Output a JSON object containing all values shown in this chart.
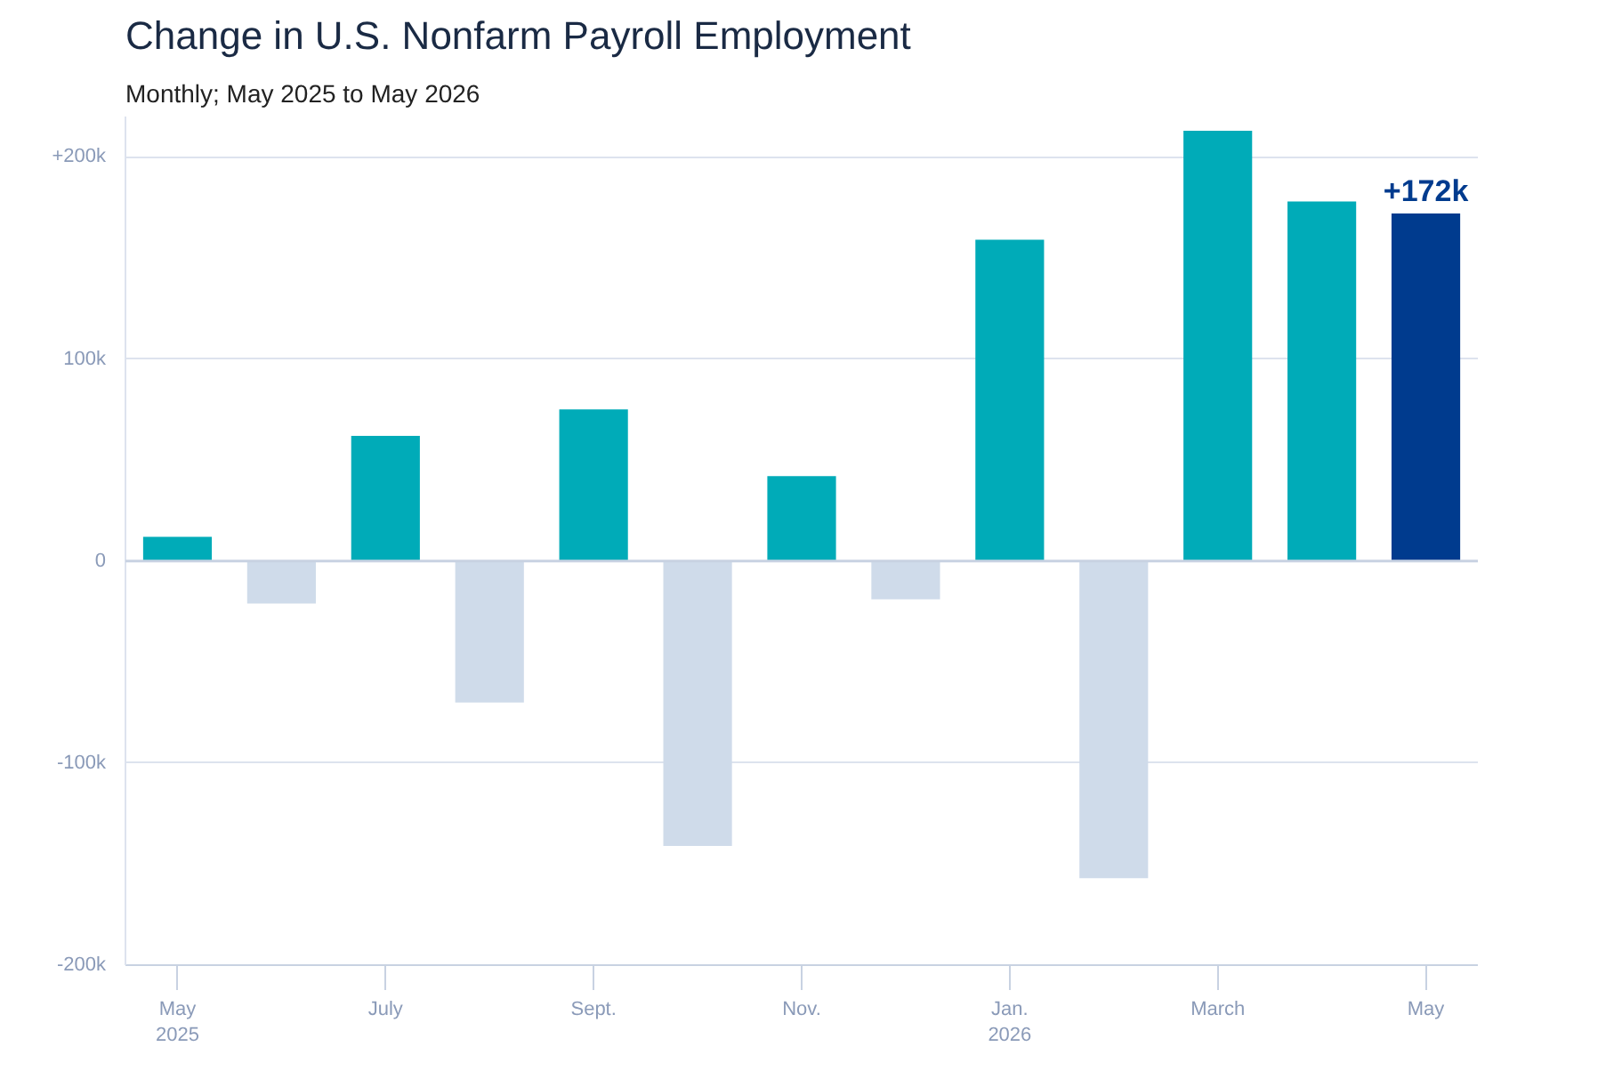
{
  "chart_data": {
    "type": "bar",
    "title": "Change in U.S. Nonfarm Payroll Employment",
    "subtitle": "Monthly; May 2025 to May 2026",
    "categories": [
      "May\n2025",
      null,
      "July",
      null,
      "Sept.",
      null,
      "Nov.",
      null,
      "Jan.\n2026",
      null,
      "March",
      null,
      "May"
    ],
    "values": [
      12000,
      -21000,
      62000,
      -70000,
      75000,
      -141000,
      42000,
      -19000,
      159000,
      -157000,
      213000,
      178000,
      172000
    ],
    "colors": [
      "#00abb8",
      "#cfdbea",
      "#00abb8",
      "#cfdbea",
      "#00abb8",
      "#cfdbea",
      "#00abb8",
      "#cfdbea",
      "#00abb8",
      "#cfdbea",
      "#00abb8",
      "#00abb8",
      "#003b8e"
    ],
    "value_labels": [
      null,
      null,
      null,
      null,
      null,
      null,
      null,
      null,
      null,
      null,
      null,
      null,
      "+172k"
    ],
    "ylim": [
      -200000,
      220000
    ],
    "yticks": [
      {
        "value": -200000,
        "label": "-200k"
      },
      {
        "value": -100000,
        "label": "-100k"
      },
      {
        "value": 0,
        "label": "0"
      },
      {
        "value": 100000,
        "label": "100k"
      },
      {
        "value": 200000,
        "label": "+200k"
      }
    ],
    "grid": "y"
  }
}
